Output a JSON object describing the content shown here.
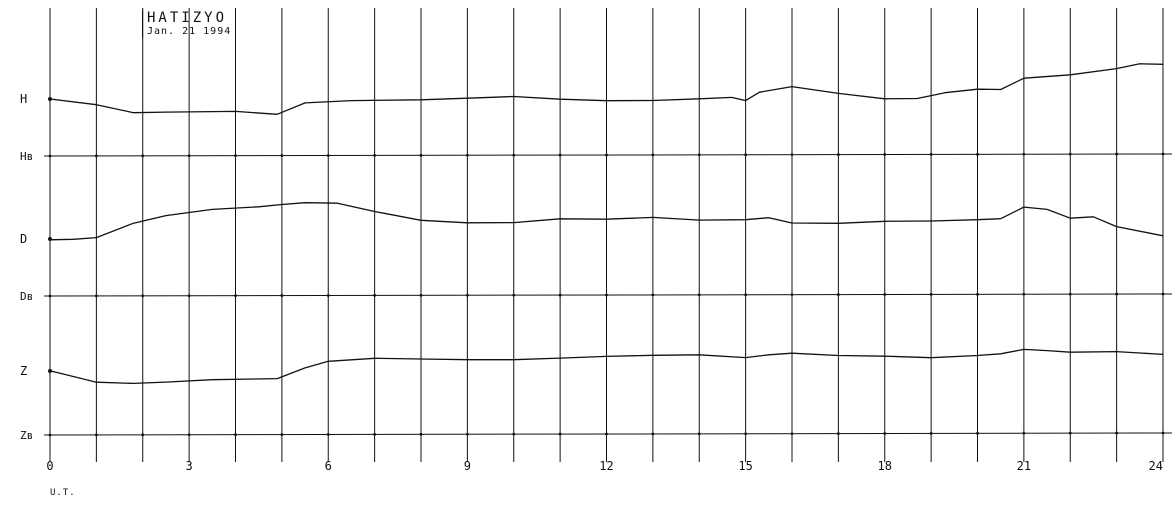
{
  "title": {
    "station": "HATIZYO",
    "date": "Jan. 21 1994"
  },
  "chart_data": {
    "type": "line",
    "title": "HATIZYO",
    "subtitle": "Jan. 21 1994",
    "xlabel": "U.T.",
    "ylabel": "",
    "xlim": [
      0,
      24
    ],
    "x_ticks": [
      0,
      3,
      6,
      9,
      12,
      15,
      18,
      21,
      24
    ],
    "x_tick_labels": [
      "0",
      "3",
      "6",
      "9",
      "12",
      "15",
      "18",
      "21",
      "24"
    ],
    "grid": true,
    "baselines": [
      {
        "label": "Hв",
        "level": 0
      },
      {
        "label": "Dв",
        "level": 0
      },
      {
        "label": "Zв",
        "level": 0
      }
    ],
    "series": [
      {
        "name": "H",
        "label": "H",
        "x": [
          0,
          1,
          1.8,
          2.5,
          4,
          4.9,
          5.5,
          6.5,
          8,
          9,
          10,
          11,
          12,
          13,
          14,
          14.7,
          15,
          15.3,
          16,
          17,
          18,
          18.7,
          19.3,
          20,
          20.5,
          21,
          22,
          23,
          23.5,
          24
        ],
        "values": [
          57,
          52,
          44,
          44,
          44,
          41,
          53,
          56,
          57,
          58,
          59,
          56,
          55,
          56,
          58,
          59,
          55,
          63,
          69,
          63,
          58,
          58,
          63,
          66,
          66,
          78,
          82,
          88,
          92,
          91
        ]
      },
      {
        "name": "D",
        "label": "D",
        "x": [
          0,
          0.5,
          1,
          1.8,
          2.5,
          3.5,
          4.5,
          5,
          5.5,
          6.2,
          7,
          8,
          9,
          10,
          11,
          12,
          13,
          14,
          15,
          15.5,
          16,
          17,
          18,
          19,
          20,
          20.5,
          21,
          21.5,
          22,
          22.5,
          23,
          24
        ],
        "values": [
          57,
          57,
          58,
          72,
          80,
          87,
          90,
          92,
          93,
          92,
          84,
          76,
          74,
          74,
          77,
          76,
          78,
          76,
          77,
          79,
          73,
          72,
          74,
          75,
          77,
          78,
          89,
          86,
          77,
          79,
          70,
          61
        ]
      },
      {
        "name": "Z",
        "label": "Z",
        "x": [
          0,
          1,
          1.8,
          2.5,
          3.5,
          4.9,
          5.5,
          6,
          7,
          8,
          9,
          10,
          11,
          12,
          13,
          14,
          15,
          15.5,
          16,
          17,
          18,
          19,
          20,
          20.5,
          21,
          21.5,
          22,
          23,
          24
        ],
        "values": [
          64,
          52,
          51,
          53,
          56,
          57,
          67,
          73,
          76,
          76,
          76,
          76,
          77,
          78,
          79,
          80,
          78,
          81,
          82,
          79,
          78,
          77,
          80,
          82,
          86,
          84,
          82,
          83,
          81
        ]
      }
    ]
  }
}
